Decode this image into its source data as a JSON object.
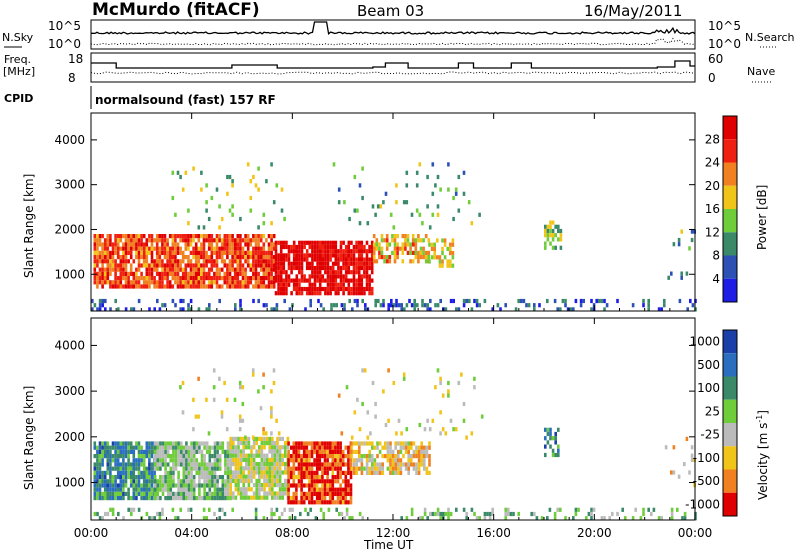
{
  "header": {
    "station": "McMurdo (fitACF)",
    "beam": "Beam 03",
    "date": "16/May/2011"
  },
  "noise_panel": {
    "left_label": "N.Sky",
    "right_label": "N.Search",
    "left_ticks": [
      "10^5",
      "10^0"
    ],
    "right_ticks": [
      "10^5",
      "10^0"
    ]
  },
  "freq_panel": {
    "left_label_1": "Freq.",
    "left_label_2": "[MHz]",
    "right_label": "Nave",
    "left_ticks": [
      "18",
      "8"
    ],
    "right_ticks": [
      "60",
      "0"
    ]
  },
  "cpid": {
    "label": "CPID",
    "value": "normalsound (fast) 157 RF"
  },
  "chart_data": [
    {
      "type": "heatmap",
      "title": "",
      "xlabel": "Time UT",
      "ylabel": "Slant Range [km]",
      "x_ticks": [
        "00:00",
        "04:00",
        "08:00",
        "12:00",
        "16:00",
        "20:00",
        "00:00"
      ],
      "y_ticks": [
        1000,
        2000,
        3000,
        4000
      ],
      "xlim_hours": [
        0,
        24
      ],
      "ylim_km": [
        180,
        4600
      ],
      "colorbar_label": "Power [dB]",
      "colorbar_ticks": [
        4,
        8,
        12,
        16,
        20,
        24,
        28
      ],
      "colorbar_range": [
        0,
        32
      ],
      "colors": [
        "#1d1de6",
        "#2c50b4",
        "#3a8a6a",
        "#6fcd3a",
        "#f0c419",
        "#f08020",
        "#f02010",
        "#e00000"
      ],
      "clusters": [
        {
          "t0": 0.1,
          "t1": 7.3,
          "r0": 700,
          "r1": 1900,
          "level": 0.78,
          "density": 0.85
        },
        {
          "t0": 7.3,
          "t1": 11.2,
          "r0": 600,
          "r1": 1750,
          "level": 0.95,
          "density": 0.85
        },
        {
          "t0": 11.2,
          "t1": 13.4,
          "r0": 1300,
          "r1": 1900,
          "level": 0.6,
          "density": 0.6
        },
        {
          "t0": 13.4,
          "t1": 14.4,
          "r0": 1150,
          "r1": 1800,
          "level": 0.55,
          "density": 0.5
        },
        {
          "t0": 3.2,
          "t1": 7.8,
          "r0": 2000,
          "r1": 3500,
          "level": 0.45,
          "density": 0.06
        },
        {
          "t0": 9.5,
          "t1": 15.5,
          "r0": 2000,
          "r1": 3500,
          "level": 0.35,
          "density": 0.05
        },
        {
          "t0": 18.0,
          "t1": 18.7,
          "r0": 1600,
          "r1": 2200,
          "level": 0.45,
          "density": 0.5
        },
        {
          "t0": 0.0,
          "t1": 24.0,
          "r0": 180,
          "r1": 450,
          "level": 0.2,
          "density": 0.25
        },
        {
          "t0": 22.8,
          "t1": 24.0,
          "r0": 900,
          "r1": 2000,
          "level": 0.35,
          "density": 0.08
        }
      ]
    },
    {
      "type": "heatmap",
      "title": "",
      "xlabel": "Time UT",
      "ylabel": "Slant Range [km]",
      "x_ticks": [
        "00:00",
        "04:00",
        "08:00",
        "12:00",
        "16:00",
        "20:00",
        "00:00"
      ],
      "y_ticks": [
        1000,
        2000,
        3000,
        4000
      ],
      "xlim_hours": [
        0,
        24
      ],
      "ylim_km": [
        180,
        4600
      ],
      "colorbar_label": "Velocity [m s-1]",
      "colorbar_ticks": [
        1000,
        500,
        100,
        25,
        -25,
        -100,
        -500,
        -1000
      ],
      "colors": [
        "#1a3fa8",
        "#2a6ec0",
        "#3a8a6a",
        "#6fcd3a",
        "#bbbbbb",
        "#f0c419",
        "#f08020",
        "#e00000"
      ],
      "clusters": [
        {
          "t0": 0.1,
          "t1": 2.5,
          "r0": 700,
          "r1": 1900,
          "level": 0.28,
          "density": 0.85
        },
        {
          "t0": 2.5,
          "t1": 5.5,
          "r0": 700,
          "r1": 1900,
          "level": 0.45,
          "density": 0.85
        },
        {
          "t0": 5.5,
          "t1": 7.8,
          "r0": 700,
          "r1": 2000,
          "level": 0.55,
          "density": 0.85
        },
        {
          "t0": 7.8,
          "t1": 10.3,
          "r0": 600,
          "r1": 1900,
          "level": 0.9,
          "density": 0.85
        },
        {
          "t0": 10.3,
          "t1": 13.4,
          "r0": 1200,
          "r1": 1900,
          "level": 0.65,
          "density": 0.7
        },
        {
          "t0": 3.5,
          "t1": 7.5,
          "r0": 2000,
          "r1": 3500,
          "level": 0.6,
          "density": 0.06
        },
        {
          "t0": 9.5,
          "t1": 15.5,
          "r0": 2000,
          "r1": 3500,
          "level": 0.6,
          "density": 0.05
        },
        {
          "t0": 18.0,
          "t1": 18.7,
          "r0": 1600,
          "r1": 2200,
          "level": 0.25,
          "density": 0.5
        },
        {
          "t0": 0.0,
          "t1": 24.0,
          "r0": 180,
          "r1": 450,
          "level": 0.45,
          "density": 0.25
        },
        {
          "t0": 22.8,
          "t1": 24.0,
          "r0": 900,
          "r1": 2000,
          "level": 0.6,
          "density": 0.08
        }
      ]
    }
  ]
}
